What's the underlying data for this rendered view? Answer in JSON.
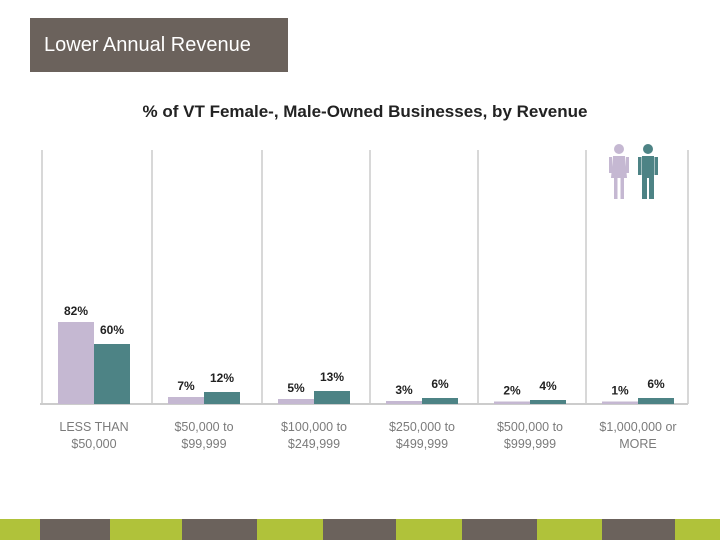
{
  "header": {
    "title": "Lower Annual Revenue"
  },
  "colors": {
    "female": "#c5b8d2",
    "male": "#4d8385",
    "header_bg": "#6b625c",
    "axis": "#cccccc",
    "footer_green": "#b0c23a",
    "footer_brown": "#6b625c"
  },
  "legend_icons": [
    "female-person-icon",
    "male-person-icon"
  ],
  "chart_data": {
    "type": "bar",
    "title": "% of VT Female-, Male-Owned Businesses, by Revenue",
    "categories": [
      "LESS THAN $50,000",
      "$50,000 to $99,999",
      "$100,000 to $249,999",
      "$250,000 to $499,999",
      "$500,000 to $999,999",
      "$1,000,000 or MORE"
    ],
    "category_lines": [
      [
        "LESS THAN",
        "$50,000"
      ],
      [
        "$50,000 to",
        "$99,999"
      ],
      [
        "$100,000 to",
        "$249,999"
      ],
      [
        "$250,000 to",
        "$499,999"
      ],
      [
        "$500,000 to",
        "$999,999"
      ],
      [
        "$1,000,000 or",
        "MORE"
      ]
    ],
    "series": [
      {
        "name": "Female-Owned",
        "values": [
          82,
          7,
          5,
          3,
          2,
          1
        ],
        "labels": [
          "82%",
          "7%",
          "5%",
          "3%",
          "2%",
          "1%"
        ]
      },
      {
        "name": "Male-Owned",
        "values": [
          60,
          12,
          13,
          6,
          4,
          6
        ],
        "labels": [
          "60%",
          "12%",
          "13%",
          "6%",
          "4%",
          "6%"
        ]
      }
    ],
    "ylim": [
      0,
      100
    ],
    "xlabel": "",
    "ylabel": "",
    "grid": true,
    "legend": "top-right"
  }
}
